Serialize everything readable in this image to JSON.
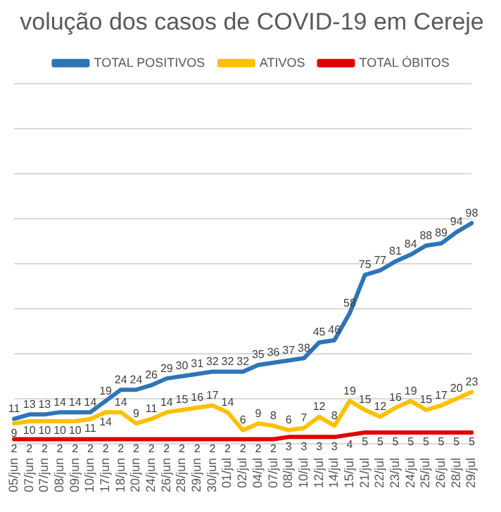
{
  "chart_data": {
    "type": "line",
    "title": "volução dos casos de COVID-19 em Cereje",
    "categories": [
      "05/jun",
      "07/jun",
      "07/jun",
      "08/jun",
      "09/jun",
      "10/jun",
      "17/jun",
      "18/jun",
      "20/jun",
      "24/jun",
      "26/jun",
      "28/jun",
      "29/jun",
      "30/jun",
      "01/jul",
      "02/jul",
      "04/jul",
      "07/jul",
      "08/jul",
      "10/jul",
      "12/jul",
      "14/jul",
      "15/jul",
      "21/jul",
      "22/jul",
      "23/jul",
      "24/jul",
      "25/jul",
      "26/jul",
      "28/jul",
      "29/jul"
    ],
    "series": [
      {
        "name": "TOTAL POSITIVOS",
        "color": "#2e75b6",
        "values": [
          11,
          13,
          13,
          14,
          14,
          14,
          19,
          24,
          24,
          26,
          29,
          30,
          31,
          32,
          32,
          32,
          35,
          36,
          37,
          38,
          45,
          46,
          58,
          75,
          77,
          81,
          84,
          88,
          89,
          94,
          98
        ]
      },
      {
        "name": "ATIVOS",
        "color": "#ffc000",
        "values": [
          9,
          10,
          10,
          10,
          10,
          11,
          14,
          14,
          9,
          11,
          14,
          15,
          16,
          17,
          14,
          6,
          9,
          8,
          6,
          7,
          12,
          8,
          19,
          15,
          12,
          16,
          19,
          15,
          17,
          20,
          23
        ]
      },
      {
        "name": "TOTAL ÓBITOS",
        "color": "#e00000",
        "values": [
          2,
          2,
          2,
          2,
          2,
          2,
          2,
          2,
          2,
          2,
          2,
          2,
          2,
          2,
          2,
          2,
          2,
          2,
          3,
          3,
          3,
          3,
          4,
          5,
          5,
          5,
          5,
          5,
          5,
          5,
          5
        ]
      }
    ],
    "ylim": [
      0,
      160
    ],
    "yticks": [
      {
        "value": 0,
        "label": null
      },
      {
        "value": 20,
        "label": null
      },
      {
        "value": 40,
        "label": null
      },
      {
        "value": 60,
        "label": null
      },
      {
        "value": 80,
        "label": null
      },
      {
        "value": 100,
        "label": null
      },
      {
        "value": 120,
        "label": null
      },
      {
        "value": 140,
        "label": null
      },
      {
        "value": 160,
        "label": null
      }
    ],
    "grid": "y",
    "legend": "top",
    "tick_labels": "x",
    "data_labels": true,
    "line_style": "solid"
  }
}
